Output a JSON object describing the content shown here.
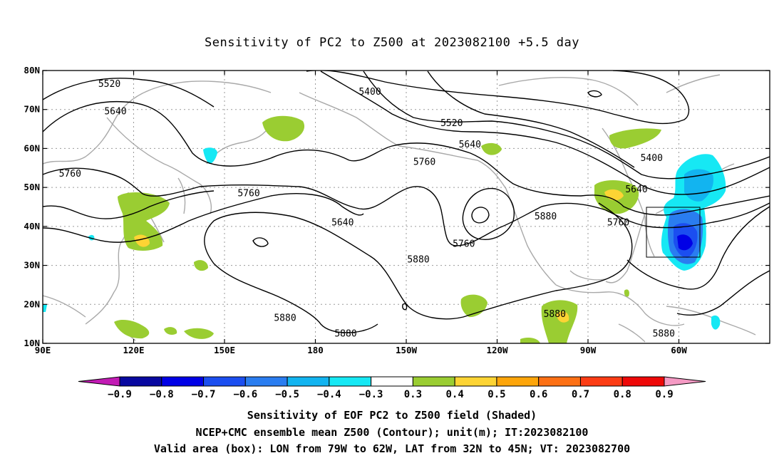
{
  "title": "Sensitivity of PC2 to Z500 at 2023082100 +5.5 day",
  "lat_ticks": [
    {
      "lat": 80,
      "label": "80N"
    },
    {
      "lat": 70,
      "label": "70N"
    },
    {
      "lat": 60,
      "label": "60N"
    },
    {
      "lat": 50,
      "label": "50N"
    },
    {
      "lat": 40,
      "label": "40N"
    },
    {
      "lat": 30,
      "label": "30N"
    },
    {
      "lat": 20,
      "label": "20N"
    },
    {
      "lat": 10,
      "label": "10N"
    }
  ],
  "lon_ticks": [
    {
      "lon": 90,
      "label": "90E"
    },
    {
      "lon": 120,
      "label": "120E"
    },
    {
      "lon": 150,
      "label": "150E"
    },
    {
      "lon": 180,
      "label": "180"
    },
    {
      "lon": 210,
      "label": "150W"
    },
    {
      "lon": 240,
      "label": "120W"
    },
    {
      "lon": 270,
      "label": "90W"
    },
    {
      "lon": 300,
      "label": "60W"
    }
  ],
  "contour_labels": [
    {
      "text": "5520",
      "lon": 112,
      "lat": 76.5
    },
    {
      "text": "5640",
      "lon": 114,
      "lat": 69.5
    },
    {
      "text": "5760",
      "lon": 99,
      "lat": 53.5
    },
    {
      "text": "5760",
      "lon": 158,
      "lat": 48.5
    },
    {
      "text": "5400",
      "lon": 198,
      "lat": 74.5
    },
    {
      "text": "5520",
      "lon": 225,
      "lat": 66.5
    },
    {
      "text": "5640",
      "lon": 231,
      "lat": 61
    },
    {
      "text": "5760",
      "lon": 216,
      "lat": 56.5
    },
    {
      "text": "5640",
      "lon": 189,
      "lat": 41
    },
    {
      "text": "5880",
      "lon": 214,
      "lat": 31.5
    },
    {
      "text": "5760",
      "lon": 229,
      "lat": 35.5
    },
    {
      "text": "5880",
      "lon": 256,
      "lat": 42.5
    },
    {
      "text": "5880",
      "lon": 259,
      "lat": 17.5
    },
    {
      "text": "5880",
      "lon": 170,
      "lat": 16.5
    },
    {
      "text": "5880",
      "lon": 190,
      "lat": 12.5
    },
    {
      "text": "5400",
      "lon": 291,
      "lat": 57.5
    },
    {
      "text": "5640",
      "lon": 286,
      "lat": 49.5
    },
    {
      "text": "5760",
      "lon": 280,
      "lat": 41
    },
    {
      "text": "5880",
      "lon": 295,
      "lat": 12.5
    }
  ],
  "colorbar": {
    "colors": [
      "#c21bb4",
      "#0808a0",
      "#0000e6",
      "#1b4ef0",
      "#2a7df0",
      "#12b4f0",
      "#16e8f4",
      "#ffffff",
      "#9acd32",
      "#fdd434",
      "#fda50a",
      "#fd7014",
      "#fc3c14",
      "#ee0808",
      "#f59ac4"
    ],
    "labels": [
      "−0.9",
      "−0.8",
      "−0.7",
      "−0.6",
      "−0.5",
      "−0.4",
      "−0.3",
      "0.3",
      "0.4",
      "0.5",
      "0.6",
      "0.7",
      "0.8",
      "0.9"
    ]
  },
  "captions": [
    "Sensitivity of EOF PC2 to Z500 field (Shaded)",
    "NCEP+CMC ensemble mean Z500 (Contour); unit(m); IT:2023082100",
    "Valid area (box): LON from 79W to 62W, LAT from 32N to 45N; VT: 2023082700"
  ],
  "valid_box": {
    "lon_from": "79W",
    "lon_to": "62W",
    "lat_from": "32N",
    "lat_to": "45N"
  }
}
